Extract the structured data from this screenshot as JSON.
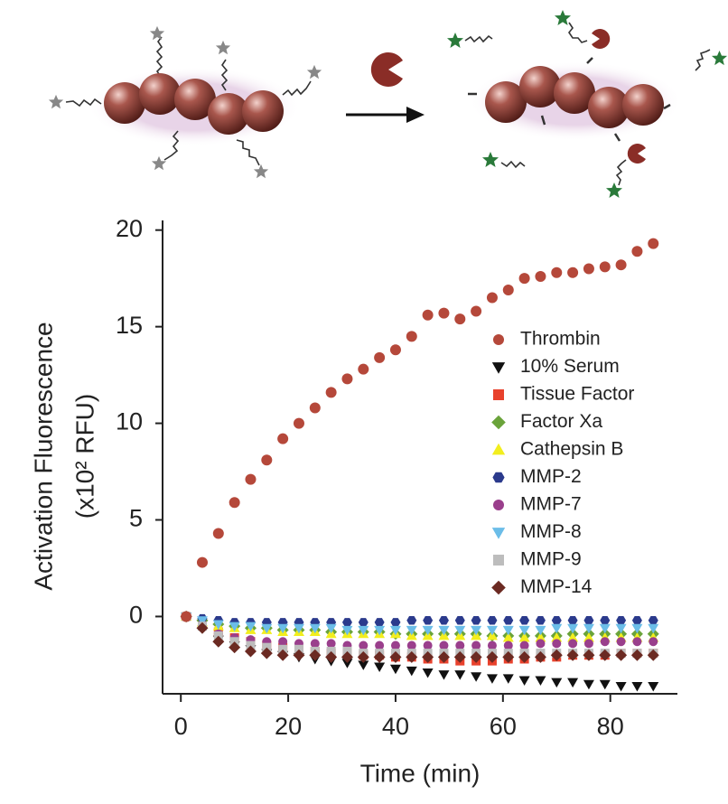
{
  "chart_data": {
    "type": "scatter",
    "xlabel": "Time (min)",
    "ylabel": [
      "Activation Fluorescence",
      "(x10² RFU)"
    ],
    "xlim": [
      -3.4,
      92.5
    ],
    "ylim": [
      -4,
      20.5
    ],
    "xticks": [
      0,
      20,
      40,
      60,
      80
    ],
    "yticks": [
      0,
      5,
      10,
      15,
      20
    ],
    "grid": false,
    "legend": "right",
    "x": [
      1,
      4,
      7,
      10,
      13,
      16,
      19,
      22,
      25,
      28,
      31,
      34,
      37,
      40,
      43,
      46,
      49,
      52,
      55,
      58,
      61,
      64,
      67,
      70,
      73,
      76,
      79,
      82,
      85,
      88
    ],
    "series": [
      {
        "name": "Thrombin",
        "color": "#b5483a",
        "marker": "circle",
        "values": [
          0,
          2.8,
          4.3,
          5.9,
          7.1,
          8.1,
          9.2,
          10.0,
          10.8,
          11.6,
          12.3,
          12.8,
          13.4,
          13.8,
          14.5,
          15.6,
          15.7,
          15.4,
          15.8,
          16.5,
          16.9,
          17.5,
          17.6,
          17.8,
          17.8,
          18.0,
          18.1,
          18.2,
          18.9,
          19.3
        ]
      },
      {
        "name": "10% Serum",
        "color": "#111111",
        "marker": "triangle-down",
        "values": [
          0,
          -0.4,
          -1.2,
          -1.5,
          -1.7,
          -1.9,
          -2.0,
          -2.1,
          -2.2,
          -2.3,
          -2.4,
          -2.5,
          -2.6,
          -2.7,
          -2.8,
          -2.9,
          -3.0,
          -3.0,
          -3.1,
          -3.2,
          -3.2,
          -3.3,
          -3.3,
          -3.4,
          -3.4,
          -3.5,
          -3.5,
          -3.6,
          -3.6,
          -3.6
        ]
      },
      {
        "name": "Tissue Factor",
        "color": "#e8412c",
        "marker": "square",
        "values": [
          0,
          -0.3,
          -0.8,
          -1.1,
          -1.3,
          -1.5,
          -1.6,
          -1.7,
          -1.8,
          -1.9,
          -1.9,
          -2.0,
          -2.0,
          -2.1,
          -2.1,
          -2.2,
          -2.2,
          -2.3,
          -2.3,
          -2.3,
          -2.2,
          -2.2,
          -2.1,
          -2.1,
          -2.0,
          -2.0,
          -2.0,
          -1.9,
          -1.9,
          -1.9
        ]
      },
      {
        "name": "Factor Xa",
        "color": "#6aa33a",
        "marker": "diamond",
        "values": [
          0,
          -0.2,
          -0.4,
          -0.5,
          -0.6,
          -0.6,
          -0.7,
          -0.7,
          -0.7,
          -0.8,
          -0.8,
          -0.8,
          -0.8,
          -0.9,
          -0.9,
          -0.9,
          -0.9,
          -0.9,
          -0.9,
          -1.0,
          -1.0,
          -1.0,
          -1.0,
          -1.0,
          -0.9,
          -0.9,
          -0.9,
          -0.9,
          -0.9,
          -0.9
        ]
      },
      {
        "name": "Cathepsin B",
        "color": "#f2ee1e",
        "marker": "triangle-up",
        "values": [
          0,
          -0.3,
          -0.5,
          -0.6,
          -0.7,
          -0.7,
          -0.8,
          -0.8,
          -0.8,
          -0.9,
          -0.9,
          -0.9,
          -0.9,
          -0.9,
          -1.0,
          -1.0,
          -1.0,
          -1.0,
          -1.0,
          -1.0,
          -1.1,
          -1.1,
          -1.1,
          -1.1,
          -1.1,
          -1.1,
          -1.1,
          -1.1,
          -1.1,
          -1.1
        ]
      },
      {
        "name": "MMP-2",
        "color": "#2b3a8c",
        "marker": "hexagon",
        "values": [
          0,
          -0.1,
          -0.2,
          -0.3,
          -0.3,
          -0.3,
          -0.3,
          -0.3,
          -0.3,
          -0.3,
          -0.3,
          -0.3,
          -0.3,
          -0.3,
          -0.2,
          -0.2,
          -0.2,
          -0.2,
          -0.2,
          -0.2,
          -0.2,
          -0.2,
          -0.2,
          -0.2,
          -0.2,
          -0.2,
          -0.2,
          -0.2,
          -0.2,
          -0.2
        ]
      },
      {
        "name": "MMP-7",
        "color": "#9a3f8c",
        "marker": "circle",
        "values": [
          0,
          -0.4,
          -0.9,
          -1.1,
          -1.2,
          -1.3,
          -1.3,
          -1.4,
          -1.4,
          -1.4,
          -1.5,
          -1.5,
          -1.5,
          -1.5,
          -1.5,
          -1.5,
          -1.5,
          -1.5,
          -1.5,
          -1.5,
          -1.5,
          -1.5,
          -1.4,
          -1.4,
          -1.4,
          -1.4,
          -1.3,
          -1.3,
          -1.3,
          -1.3
        ]
      },
      {
        "name": "MMP-8",
        "color": "#6bbde8",
        "marker": "triangle-down",
        "values": [
          0,
          -0.2,
          -0.4,
          -0.5,
          -0.5,
          -0.6,
          -0.6,
          -0.6,
          -0.6,
          -0.6,
          -0.7,
          -0.7,
          -0.7,
          -0.7,
          -0.7,
          -0.7,
          -0.7,
          -0.7,
          -0.7,
          -0.7,
          -0.7,
          -0.7,
          -0.7,
          -0.6,
          -0.6,
          -0.6,
          -0.6,
          -0.6,
          -0.6,
          -0.6
        ]
      },
      {
        "name": "MMP-9",
        "color": "#bdbdbd",
        "marker": "square",
        "values": [
          0,
          -0.5,
          -1.0,
          -1.3,
          -1.5,
          -1.6,
          -1.7,
          -1.7,
          -1.8,
          -1.8,
          -1.8,
          -1.9,
          -1.9,
          -1.9,
          -1.9,
          -1.9,
          -1.9,
          -1.9,
          -1.9,
          -1.9,
          -1.9,
          -1.9,
          -1.9,
          -1.9,
          -1.9,
          -1.9,
          -1.9,
          -1.9,
          -1.9,
          -1.9
        ]
      },
      {
        "name": "MMP-14",
        "color": "#6b2a22",
        "marker": "diamond",
        "values": [
          0,
          -0.6,
          -1.3,
          -1.6,
          -1.8,
          -1.9,
          -2.0,
          -2.0,
          -2.0,
          -2.1,
          -2.1,
          -2.1,
          -2.1,
          -2.1,
          -2.1,
          -2.1,
          -2.1,
          -2.1,
          -2.1,
          -2.1,
          -2.1,
          -2.1,
          -2.1,
          -2.0,
          -2.0,
          -2.0,
          -2.0,
          -2.0,
          -2.0,
          -2.0
        ]
      }
    ]
  }
}
